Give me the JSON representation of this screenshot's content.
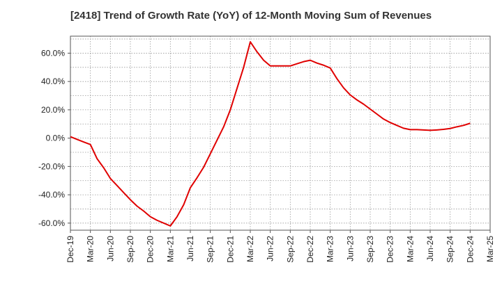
{
  "chart_data": {
    "type": "line",
    "title": "[2418]  Trend of Growth Rate (YoY) of 12-Month Moving Sum of Revenues",
    "xlabel": "",
    "ylabel": "",
    "x_tick_labels": [
      "Dec-19",
      "Mar-20",
      "Jun-20",
      "Sep-20",
      "Dec-20",
      "Mar-21",
      "Jun-21",
      "Sep-21",
      "Dec-21",
      "Mar-22",
      "Jun-22",
      "Sep-22",
      "Dec-22",
      "Mar-23",
      "Jun-23",
      "Sep-23",
      "Dec-23",
      "Mar-24",
      "Jun-24",
      "Sep-24",
      "Dec-24",
      "Mar-25"
    ],
    "y_tick_labels": [
      "60.0%",
      "40.0%",
      "20.0%",
      "0.0%",
      "-20.0%",
      "-40.0%",
      "-60.0%"
    ],
    "y_ticks": [
      60,
      40,
      20,
      0,
      -20,
      -40,
      -60
    ],
    "ylim": [
      -65,
      72
    ],
    "grid": true,
    "legend": "none",
    "series": [
      {
        "color": "#e00000",
        "x": [
          "Dec-19",
          "Jan-20",
          "Feb-20",
          "Mar-20",
          "Apr-20",
          "May-20",
          "Jun-20",
          "Jul-20",
          "Aug-20",
          "Sep-20",
          "Oct-20",
          "Nov-20",
          "Dec-20",
          "Jan-21",
          "Feb-21",
          "Mar-21",
          "Apr-21",
          "May-21",
          "Jun-21",
          "Jul-21",
          "Aug-21",
          "Sep-21",
          "Oct-21",
          "Nov-21",
          "Dec-21",
          "Jan-22",
          "Feb-22",
          "Mar-22",
          "Apr-22",
          "May-22",
          "Jun-22",
          "Jul-22",
          "Aug-22",
          "Sep-22",
          "Oct-22",
          "Nov-22",
          "Dec-22",
          "Jan-23",
          "Feb-23",
          "Mar-23",
          "Apr-23",
          "May-23",
          "Jun-23",
          "Jul-23",
          "Aug-23",
          "Sep-23",
          "Oct-23",
          "Nov-23",
          "Dec-23",
          "Jan-24",
          "Feb-24",
          "Mar-24",
          "Apr-24",
          "May-24",
          "Jun-24",
          "Jul-24",
          "Aug-24",
          "Sep-24",
          "Oct-24",
          "Nov-24",
          "Dec-24"
        ],
        "values": [
          1.0,
          -0.9,
          -2.7,
          -4.5,
          -14.5,
          -21.0,
          -28.5,
          -33.5,
          -38.5,
          -43.5,
          -48.0,
          -51.5,
          -55.5,
          -58.0,
          -60.0,
          -62.0,
          -55.5,
          -47.0,
          -35.0,
          -28.0,
          -20.5,
          -11.0,
          -1.5,
          8.0,
          20.0,
          35.0,
          50.0,
          68.0,
          61.0,
          55.0,
          51.0,
          51.0,
          51.0,
          51.0,
          52.5,
          54.0,
          55.0,
          53.0,
          51.5,
          49.5,
          42.0,
          35.5,
          30.5,
          27.0,
          24.0,
          20.5,
          17.0,
          13.5,
          11.0,
          9.0,
          7.0,
          6.0,
          6.0,
          5.8,
          5.5,
          5.8,
          6.2,
          6.8,
          8.0,
          9.0,
          10.5
        ]
      }
    ]
  }
}
